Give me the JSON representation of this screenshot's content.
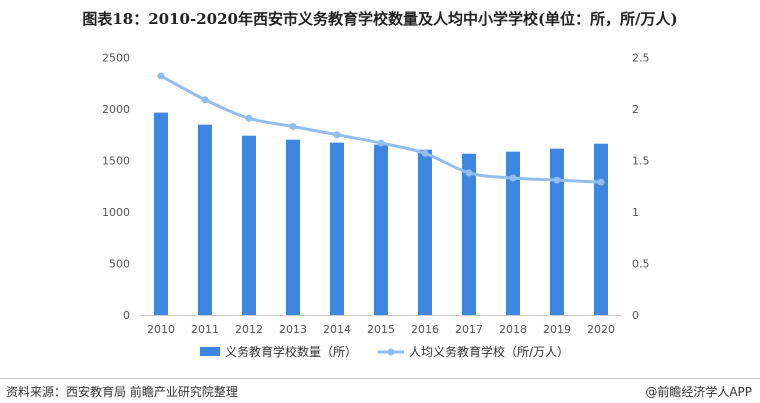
{
  "title": "图表18：2010-2020年西安市义务教育学校数量及人均中小学学校(单位：所，所/万人)",
  "chart_data": {
    "type": "bar+line",
    "title": "图表18：2010-2020年西安市义务教育学校数量及人均中小学学校(单位：所，所/万人)",
    "categories": [
      "2010",
      "2011",
      "2012",
      "2013",
      "2014",
      "2015",
      "2016",
      "2017",
      "2018",
      "2019",
      "2020"
    ],
    "series": [
      {
        "name": "义务教育学校数量（所）",
        "type": "bar",
        "axis": "left",
        "color": "#3f86e0",
        "values": [
          1965,
          1848,
          1741,
          1702,
          1673,
          1654,
          1605,
          1566,
          1586,
          1615,
          1663
        ]
      },
      {
        "name": "人均义务教育学校（所/万人）",
        "type": "line",
        "axis": "right",
        "color": "#92bdf0",
        "values": [
          2.32,
          2.09,
          1.91,
          1.83,
          1.75,
          1.67,
          1.57,
          1.38,
          1.33,
          1.31,
          1.29
        ]
      }
    ],
    "yleft": {
      "range": [
        0,
        2500
      ],
      "ticks": [
        "0",
        "500",
        "1000",
        "1500",
        "2000",
        "2500"
      ]
    },
    "yright": {
      "range": [
        0,
        2.5
      ],
      "ticks": [
        "0",
        "0.5",
        "1",
        "1.5",
        "2",
        "2.5"
      ]
    },
    "legend": "bottom",
    "grid": false
  },
  "footer": {
    "source": "资料来源：西安教育局 前瞻产业研究院整理",
    "app": "@前瞻经济学人APP"
  }
}
